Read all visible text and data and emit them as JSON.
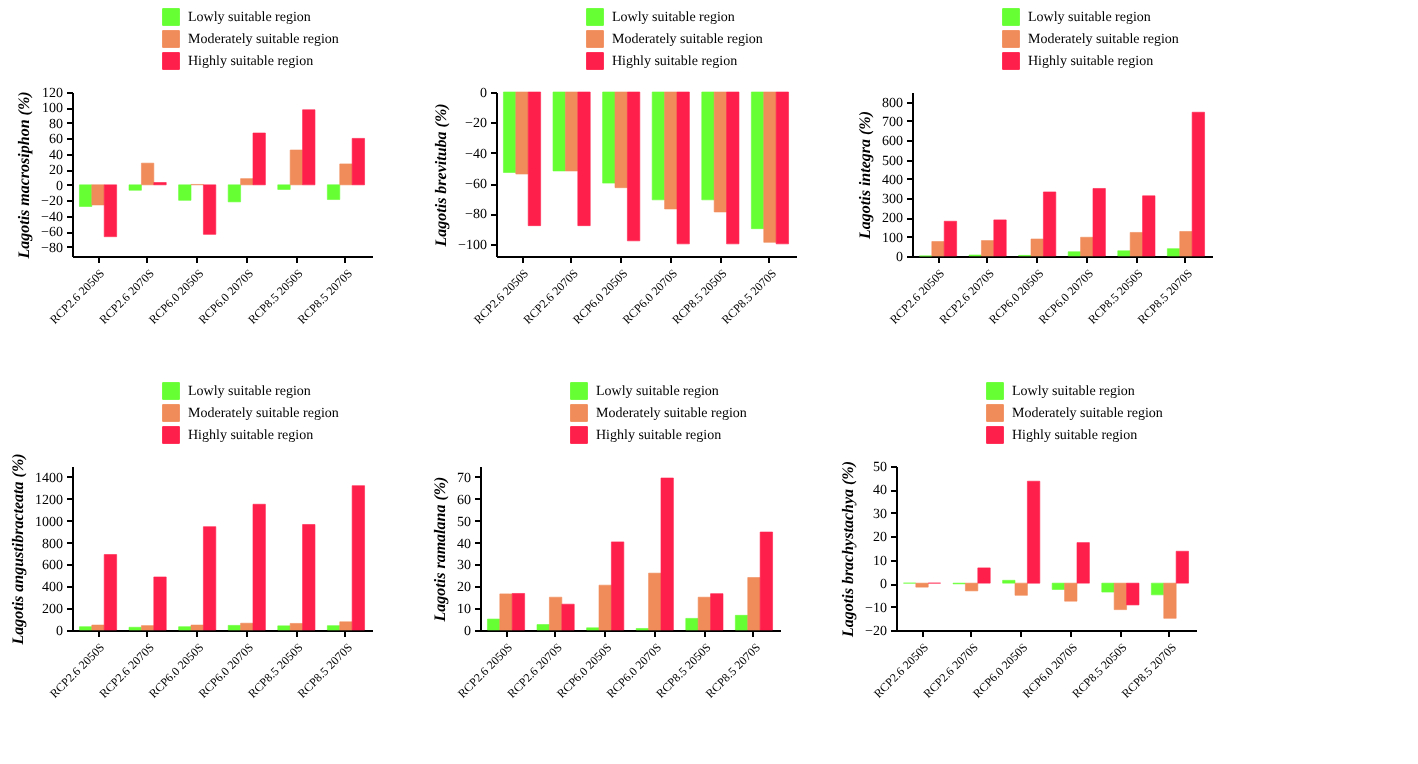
{
  "chart_data": [
    {
      "type": "bar",
      "ylabel": "Lagotis macrosiphon (%)",
      "categories": [
        "RCP2.6 2050S",
        "RCP2.6 2070S",
        "RCP6.0 2050S",
        "RCP6.0 2070S",
        "RCP8.5 2050S",
        "RCP8.5 2070S"
      ],
      "ylim": [
        -92,
        120
      ],
      "yticks": [
        -80,
        -60,
        -40,
        -20,
        0,
        20,
        40,
        60,
        80,
        100,
        120
      ],
      "legend": "top right",
      "grid": false,
      "series": [
        {
          "name": "Lowly suitable region",
          "color": "#66ff33",
          "values": [
            -28,
            -7,
            -20,
            -22,
            -6,
            -19
          ]
        },
        {
          "name": "Moderately suitable region",
          "color": "#f08c5a",
          "values": [
            -26,
            28,
            0.5,
            8,
            45,
            27
          ]
        },
        {
          "name": "Highly suitable region",
          "color": "#ff1f4b",
          "values": [
            -67,
            3,
            -64,
            67,
            97,
            60
          ]
        }
      ]
    },
    {
      "type": "bar",
      "ylabel": "Lagotis brevituba (%)",
      "categories": [
        "RCP2.6 2050S",
        "RCP2.6 2070S",
        "RCP6.0 2050S",
        "RCP6.0 2070S",
        "RCP8.5 2050S",
        "RCP8.5 2070S"
      ],
      "ylim": [
        -108,
        0
      ],
      "yticks": [
        -100,
        -80,
        -60,
        -40,
        -20,
        0
      ],
      "legend": "top right",
      "grid": false,
      "series": [
        {
          "name": "Lowly suitable region",
          "color": "#66ff33",
          "values": [
            -53,
            -52,
            -60,
            -71,
            -71,
            -90
          ]
        },
        {
          "name": "Moderately suitable region",
          "color": "#f08c5a",
          "values": [
            -54,
            -52,
            -63,
            -77,
            -79,
            -99
          ]
        },
        {
          "name": "Highly suitable region",
          "color": "#ff1f4b",
          "values": [
            -88,
            -88,
            -98,
            -100,
            -100,
            -100
          ]
        }
      ]
    },
    {
      "type": "bar",
      "ylabel": "Lagotis integra (%)",
      "categories": [
        "RCP2.6 2050S",
        "RCP2.6 2070S",
        "RCP6.0 2050S",
        "RCP6.0 2070S",
        "RCP8.5 2050S",
        "RCP8.5 2070S"
      ],
      "ylim": [
        0,
        850
      ],
      "yticks": [
        0,
        100,
        200,
        300,
        400,
        500,
        600,
        700,
        800
      ],
      "legend": "top right",
      "grid": false,
      "series": [
        {
          "name": "Lowly suitable region",
          "color": "#66ff33",
          "values": [
            0,
            5,
            3,
            22,
            27,
            38
          ]
        },
        {
          "name": "Moderately suitable region",
          "color": "#f08c5a",
          "values": [
            75,
            80,
            88,
            97,
            122,
            127
          ]
        },
        {
          "name": "Highly suitable region",
          "color": "#ff1f4b",
          "values": [
            180,
            187,
            332,
            350,
            312,
            745
          ]
        }
      ]
    },
    {
      "type": "bar",
      "ylabel": "Lagotis angustibracteata (%)",
      "categories": [
        "RCP2.6 2050S",
        "RCP2.6 2070S",
        "RCP6.0 2050S",
        "RCP6.0 2070S",
        "RCP8.5 2050S",
        "RCP8.5 2070S"
      ],
      "ylim": [
        0,
        1500
      ],
      "yticks": [
        0,
        200,
        400,
        600,
        800,
        1000,
        1200,
        1400
      ],
      "legend": "top right",
      "grid": false,
      "series": [
        {
          "name": "Lowly suitable region",
          "color": "#66ff33",
          "values": [
            30,
            25,
            30,
            42,
            38,
            40
          ]
        },
        {
          "name": "Moderately suitable region",
          "color": "#f08c5a",
          "values": [
            45,
            40,
            45,
            62,
            60,
            75
          ]
        },
        {
          "name": "Highly suitable region",
          "color": "#ff1f4b",
          "values": [
            690,
            485,
            945,
            1150,
            965,
            1320
          ]
        }
      ]
    },
    {
      "type": "bar",
      "ylabel": "Lagotis ramalana (%)",
      "categories": [
        "RCP2.6 2050S",
        "RCP2.6 2070S",
        "RCP6.0 2050S",
        "RCP6.0 2070S",
        "RCP8.5 2050S",
        "RCP8.5 2070S"
      ],
      "ylim": [
        0,
        75
      ],
      "yticks": [
        0,
        10,
        20,
        30,
        40,
        50,
        60,
        70
      ],
      "legend": "top right",
      "grid": false,
      "series": [
        {
          "name": "Lowly suitable region",
          "color": "#66ff33",
          "values": [
            5,
            2.5,
            1,
            0.7,
            5.3,
            6.7
          ]
        },
        {
          "name": "Moderately suitable region",
          "color": "#f08c5a",
          "values": [
            16.5,
            15,
            20.5,
            26,
            15,
            24
          ]
        },
        {
          "name": "Highly suitable region",
          "color": "#ff1f4b",
          "values": [
            16.7,
            11.8,
            40.3,
            69.5,
            16.6,
            44.8
          ]
        }
      ]
    },
    {
      "type": "bar",
      "ylabel": "Lagotis brachystachya (%)",
      "categories": [
        "RCP2.6 2050S",
        "RCP2.6 2070S",
        "RCP6.0 2050S",
        "RCP6.0 2070S",
        "RCP8.5 2050S",
        "RCP8.5 2070S"
      ],
      "ylim": [
        -20,
        50
      ],
      "yticks": [
        -20,
        -10,
        0,
        10,
        20,
        30,
        40,
        50
      ],
      "legend": "top right",
      "grid": false,
      "series": [
        {
          "name": "Lowly suitable region",
          "color": "#66ff33",
          "values": [
            0,
            -0.3,
            1.2,
            -2.7,
            -3.8,
            -5
          ]
        },
        {
          "name": "Moderately suitable region",
          "color": "#f08c5a",
          "values": [
            -1.7,
            -3.3,
            -5.2,
            -7.7,
            -11.3,
            -15
          ]
        },
        {
          "name": "Highly suitable region",
          "color": "#ff1f4b",
          "values": [
            0,
            6.5,
            43.5,
            17.3,
            -9.3,
            13.6
          ]
        }
      ]
    }
  ]
}
